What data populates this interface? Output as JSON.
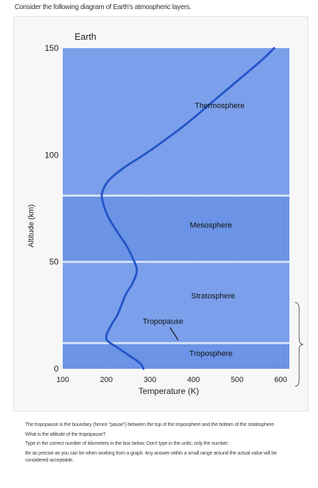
{
  "question": {
    "intro": "Consider the following diagram of Earth's atmospheric layers.",
    "body": [
      "The tropopause is the boundary (hence \"pause\") between the top of the troposphere and the bottom of the stratosphere.",
      "What is the altitude of the tropopause?",
      "Type in the correct number of kilometers in the box below. Don't type in the units; only the number.",
      "Be as precise as you can be when working from a graph. Any answer within a small range around the actual value will be considered acceptable."
    ]
  },
  "chart_data": {
    "type": "line",
    "title": "Earth",
    "xlabel": "Temperature (K)",
    "ylabel": "Altitude (km)",
    "x_ticks": [
      "100",
      "200",
      "300",
      "400",
      "500",
      "600"
    ],
    "x_tick_values": [
      100,
      200,
      300,
      400,
      500,
      600
    ],
    "y_ticks": [
      "0",
      "50",
      "100",
      "150"
    ],
    "y_tick_values": [
      0,
      50,
      100,
      150
    ],
    "xlim": [
      100,
      620
    ],
    "ylim": [
      0,
      150
    ],
    "layer_boundaries_km": [
      12,
      50,
      81
    ],
    "layers": [
      {
        "name": "Troposphere",
        "x": 440,
        "y": 6
      },
      {
        "name": "Stratosphere",
        "x": 445,
        "y": 33
      },
      {
        "name": "Mesosphere",
        "x": 440,
        "y": 66
      },
      {
        "name": "Thermosphere",
        "x": 460,
        "y": 122
      }
    ],
    "annotation": {
      "label": "Tropopause",
      "x": 330,
      "y": 21,
      "arrow_to": [
        365,
        12
      ]
    },
    "series": [
      {
        "x": [
          285,
          275,
          225,
          200,
          210,
          225,
          235,
          245,
          260,
          270,
          260,
          245,
          225,
          207,
          198,
          192,
          190,
          205,
          240,
          300,
          380,
          450,
          520,
          560,
          585
        ],
        "y": [
          0,
          3,
          10,
          14,
          20,
          25,
          30,
          35,
          40,
          46,
          52,
          58,
          64,
          70,
          74,
          78,
          82,
          88,
          94,
          102,
          114,
          126,
          138,
          145,
          150
        ]
      }
    ],
    "colors": {
      "background": "#6b93e6",
      "band": "#7b9fea",
      "boundary": "#d5e3f7",
      "curve": "#2355c9",
      "grid": "#7ea2eb"
    }
  }
}
